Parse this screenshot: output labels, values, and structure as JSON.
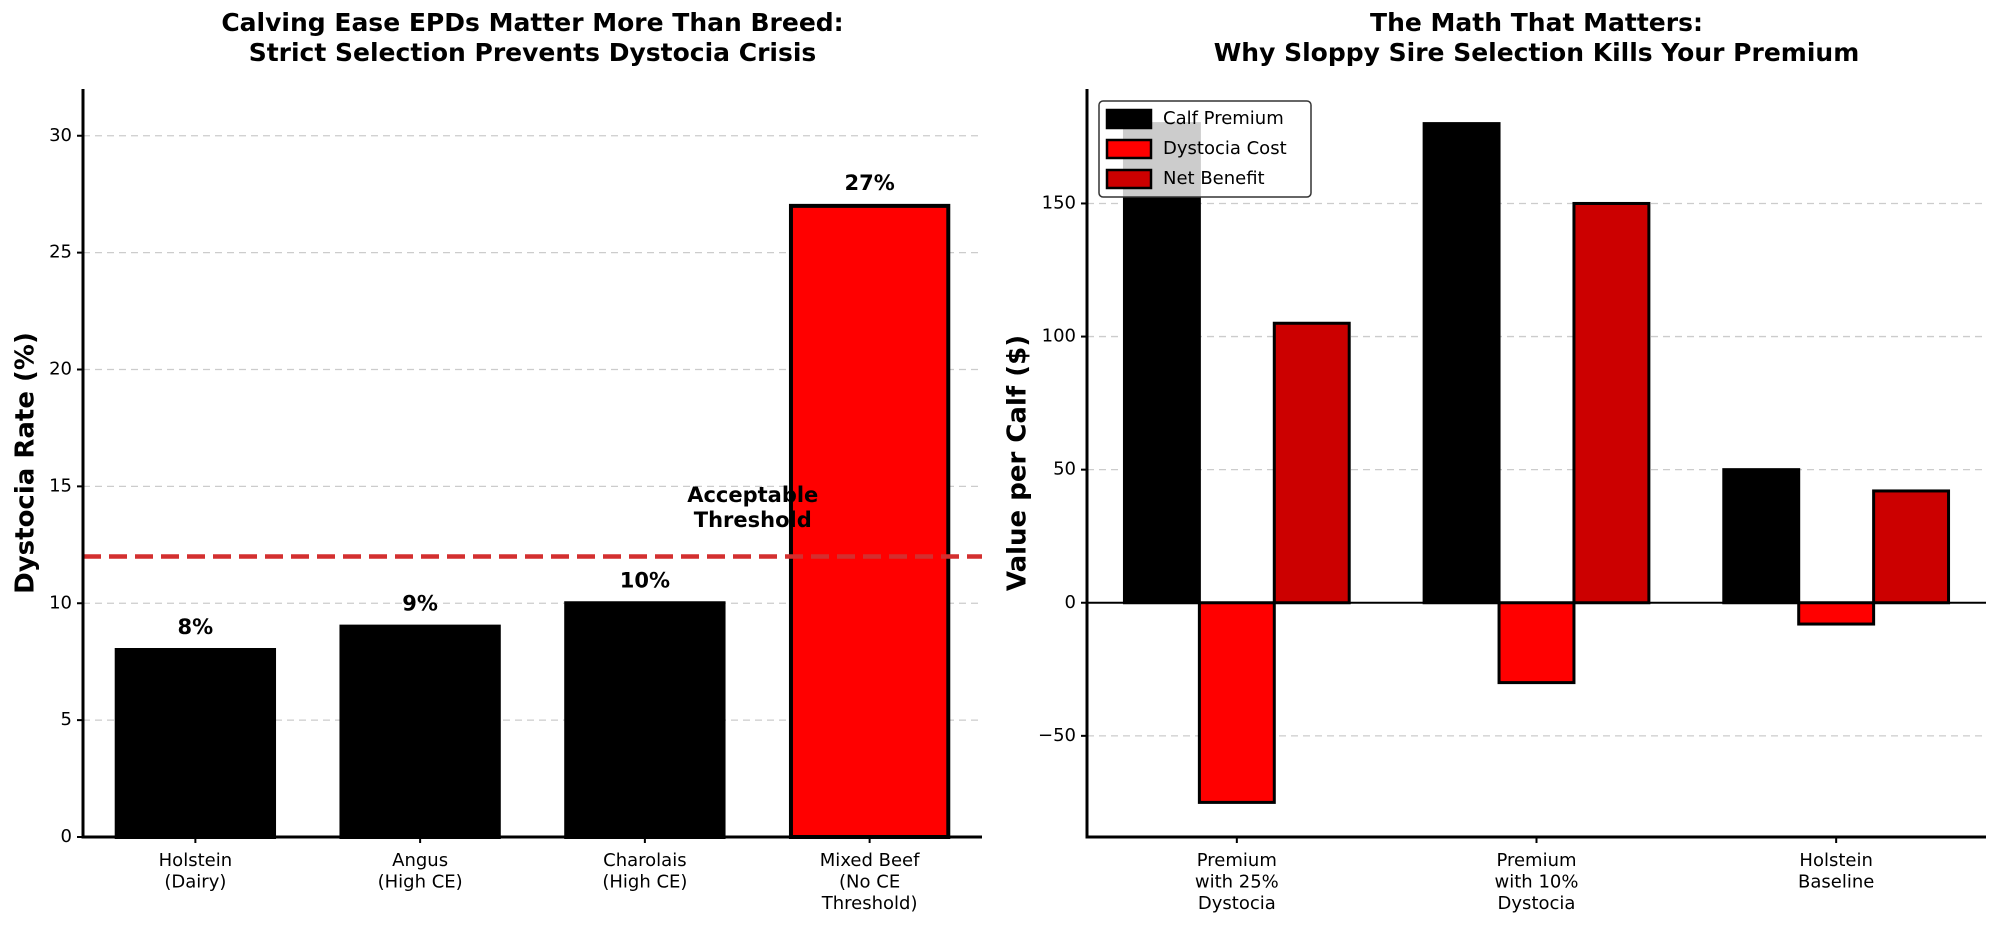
{
  "chart_data": [
    {
      "type": "bar",
      "title": "Calving Ease EPDs Matter More Than Breed:\nStrict Selection Prevents Dystocia Crisis",
      "y_label": "Dystocia Rate (%)",
      "categories": [
        "Holstein\n(Dairy)",
        "Angus\n(High CE)",
        "Charolais\n(High CE)",
        "Mixed Beef\n(No CE\nThreshold)"
      ],
      "values": [
        8,
        9,
        10,
        27
      ],
      "value_labels": [
        "8%",
        "9%",
        "10%",
        "27%"
      ],
      "colors": [
        "#000000",
        "#000000",
        "#000000",
        "#ff0000"
      ],
      "ylim": [
        0,
        32
      ],
      "yticks": [
        0,
        5,
        10,
        15,
        20,
        25,
        30
      ],
      "grid": true,
      "threshold": {
        "value": 12,
        "label": "Acceptable\nThreshold",
        "color": "#d32f2f"
      }
    },
    {
      "type": "bar",
      "title": "The Math That Matters:\nWhy Sloppy Sire Selection Kills Your Premium",
      "y_label": "Value per Calf ($)",
      "categories": [
        "Premium\nwith 25%\nDystocia",
        "Premium\nwith 10%\nDystocia",
        "Holstein\nBaseline"
      ],
      "series": [
        {
          "name": "Calf Premium",
          "color": "#000000",
          "values": [
            180,
            180,
            50
          ]
        },
        {
          "name": "Dystocia Cost",
          "color": "#ff0000",
          "values": [
            -75,
            -30,
            -8
          ]
        },
        {
          "name": "Net Benefit",
          "color": "#cc0000",
          "values": [
            105,
            150,
            42
          ]
        }
      ],
      "ylim": [
        -88,
        193
      ],
      "yticks": [
        {
          "value": -50,
          "label": "−50"
        },
        0,
        50,
        100,
        150
      ],
      "grid": true,
      "legend": "upper left"
    }
  ]
}
